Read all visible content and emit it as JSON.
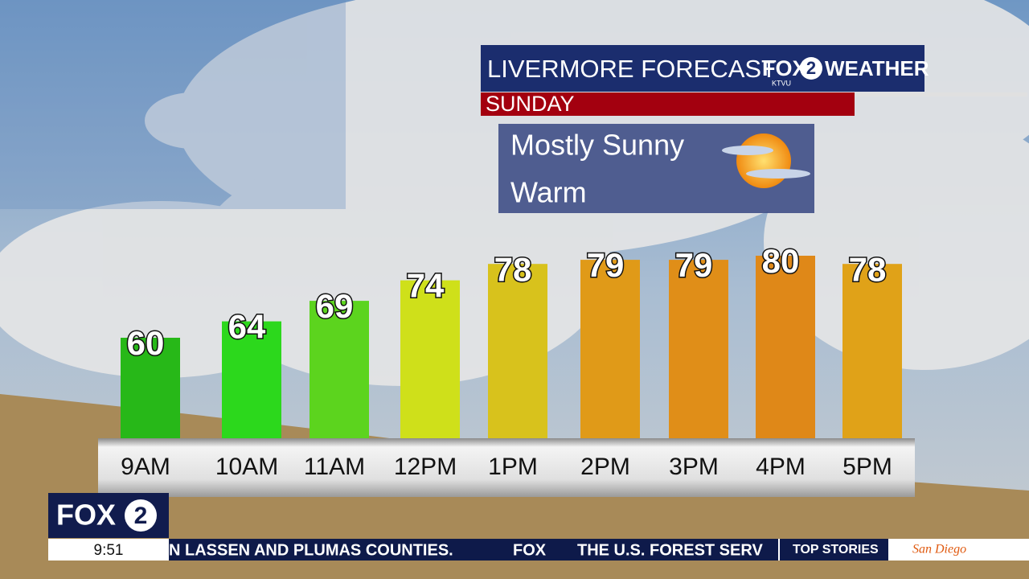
{
  "chart_data": {
    "type": "bar",
    "title": "LIVERMORE FORECAST",
    "subtitle": "SUNDAY",
    "annotations": [
      "Mostly Sunny",
      "Warm"
    ],
    "categories": [
      "9AM",
      "10AM",
      "11AM",
      "12PM",
      "1PM",
      "2PM",
      "3PM",
      "4PM",
      "5PM"
    ],
    "values": [
      60,
      64,
      69,
      74,
      78,
      79,
      79,
      80,
      78
    ],
    "colors": [
      "#27b818",
      "#2cd81c",
      "#5cd41e",
      "#cfe01a",
      "#d8c21c",
      "#e09a18",
      "#e08e18",
      "#df8818",
      "#e0a218"
    ]
  },
  "branding": {
    "network": "FOX",
    "channel": "2",
    "weather": "WEATHER",
    "station": "KTVU"
  },
  "clock": "9:51",
  "ticker": {
    "left": "N LASSEN AND PLUMAS COUNTIES.",
    "separator": "FOX",
    "right": "THE U.S. FOREST SERV",
    "section": "TOP STORIES",
    "ad": "San Diego"
  }
}
